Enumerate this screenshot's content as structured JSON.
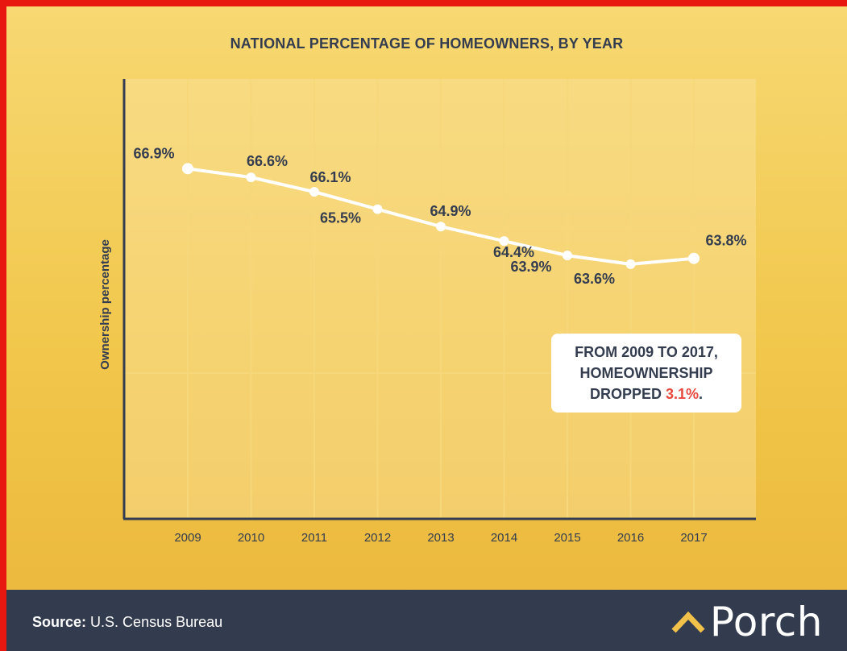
{
  "chart_data": {
    "type": "line",
    "title": "NATIONAL PERCENTAGE OF HOMEOWNERS, BY YEAR",
    "xlabel": "",
    "ylabel": "Ownership percentage",
    "categories": [
      "2009",
      "2010",
      "2011",
      "2012",
      "2013",
      "2014",
      "2015",
      "2016",
      "2017"
    ],
    "series": [
      {
        "values": [
          66.9,
          66.6,
          66.1,
          65.5,
          64.9,
          64.4,
          63.9,
          63.6,
          63.8
        ],
        "labels": [
          "66.9%",
          "66.6%",
          "66.1%",
          "65.5%",
          "64.9%",
          "64.4%",
          "63.9%",
          "63.6%",
          "63.8%"
        ]
      }
    ],
    "ylim": [
      54.8,
      70
    ],
    "grid": true,
    "colors": {
      "line": "#ffffff",
      "axis": "#343d4f",
      "text": "#343d4f",
      "highlight": "#e8483e"
    }
  },
  "callout": {
    "line1": "FROM 2009 TO 2017,",
    "line2": "HOMEOWNERSHIP",
    "line3_prefix": "DROPPED ",
    "line3_highlight": "3.1%",
    "line3_suffix": "."
  },
  "footer": {
    "source_label": "Source:",
    "source_text": "U.S. Census Bureau",
    "brand": "Porch"
  }
}
